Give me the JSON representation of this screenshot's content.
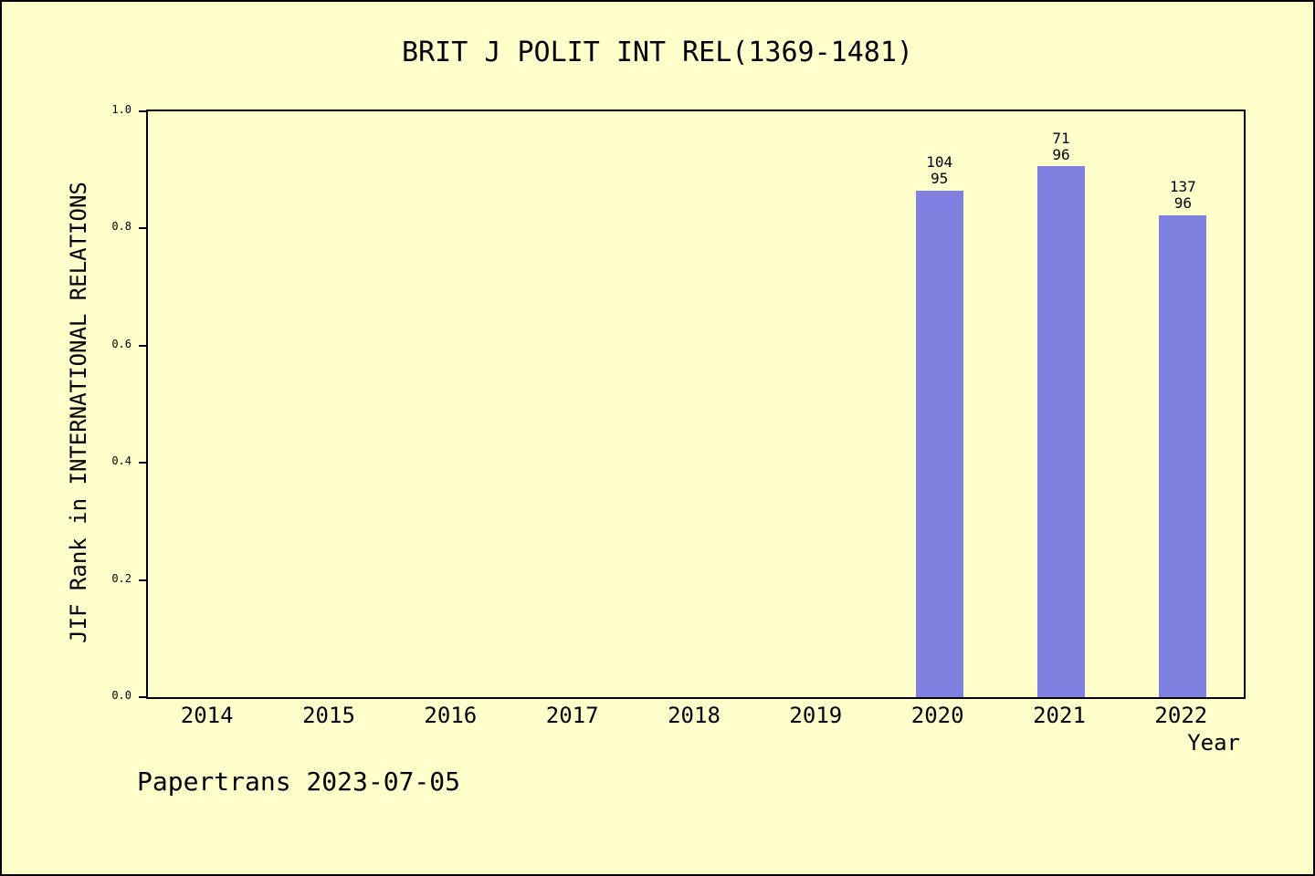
{
  "page": {
    "background_color": "#ffffcc",
    "frame_color": "#000000"
  },
  "chart_data": {
    "type": "bar",
    "title": "BRIT J POLIT INT REL(1369-1481)",
    "xlabel": "Year",
    "ylabel": "JIF Rank in INTERNATIONAL RELATIONS",
    "categories": [
      "2014",
      "2015",
      "2016",
      "2017",
      "2018",
      "2019",
      "2020",
      "2021",
      "2022"
    ],
    "values": [
      null,
      null,
      null,
      null,
      null,
      null,
      0.865,
      0.906,
      0.823
    ],
    "bar_labels": [
      null,
      null,
      null,
      null,
      null,
      null,
      [
        "104",
        "95"
      ],
      [
        "71",
        "96"
      ],
      [
        "137",
        "96"
      ]
    ],
    "ylim": [
      0,
      1
    ],
    "yticks": [
      "0.0",
      "0.2",
      "0.4",
      "0.6",
      "0.8",
      "1.0"
    ],
    "grid": false,
    "legend": null,
    "bar_color": "#8080e0"
  },
  "footer": {
    "text": "Papertrans 2023-07-05"
  }
}
